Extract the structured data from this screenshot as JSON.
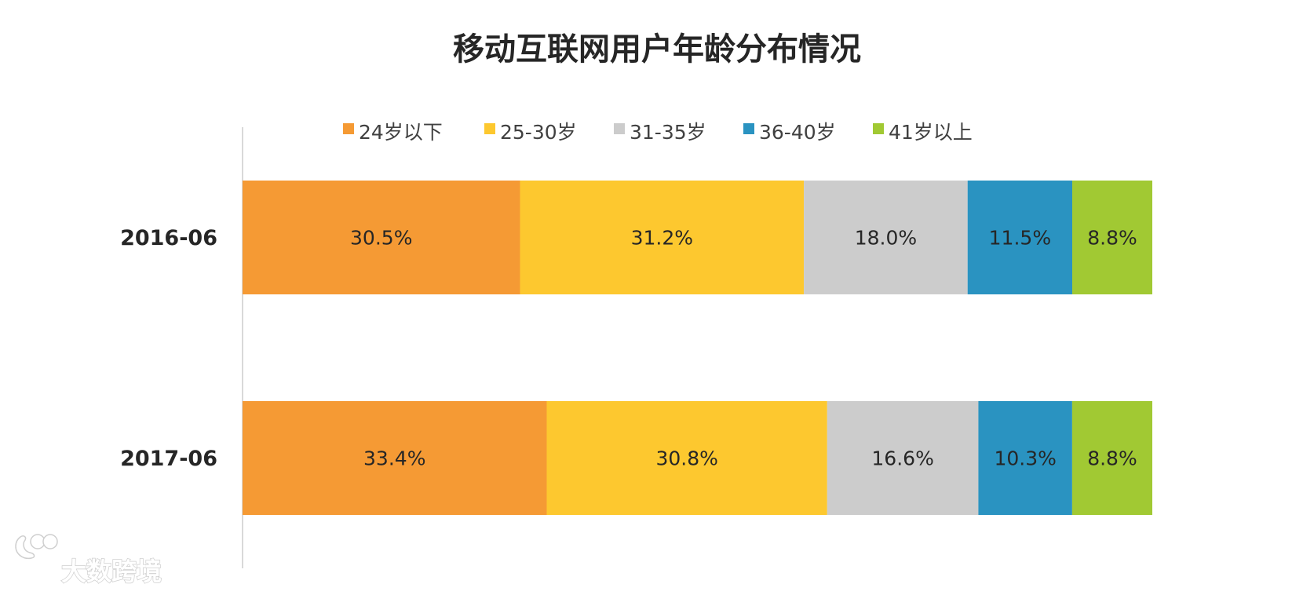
{
  "chart_data": {
    "type": "bar",
    "orientation": "horizontal",
    "stacked": true,
    "title": "移动互联网用户年龄分布情况",
    "categories": [
      "2016-06",
      "2017-06"
    ],
    "series": [
      {
        "name": "24岁以下",
        "values": [
          30.5,
          33.4
        ],
        "labels": [
          "30.5%",
          "33.4%"
        ],
        "color": "#F59A34"
      },
      {
        "name": "25-30岁",
        "values": [
          31.2,
          30.8
        ],
        "labels": [
          "31.2%",
          "30.8%"
        ],
        "color": "#FDC82F"
      },
      {
        "name": "31-35岁",
        "values": [
          18.0,
          16.6
        ],
        "labels": [
          "18.0%",
          "16.6%"
        ],
        "color": "#CCCCCC"
      },
      {
        "name": "36-40岁",
        "values": [
          11.5,
          10.3
        ],
        "labels": [
          "11.5%",
          "10.3%"
        ],
        "color": "#2A93C1"
      },
      {
        "name": "41岁以上",
        "values": [
          8.8,
          8.8
        ],
        "labels": [
          "8.8%",
          "8.8%"
        ],
        "color": "#A1C933"
      }
    ],
    "xlabel": "",
    "ylabel": "",
    "legend_position": "top",
    "grid": false
  },
  "watermark": {
    "text": "大数跨境",
    "color": "#CFCFCF"
  }
}
